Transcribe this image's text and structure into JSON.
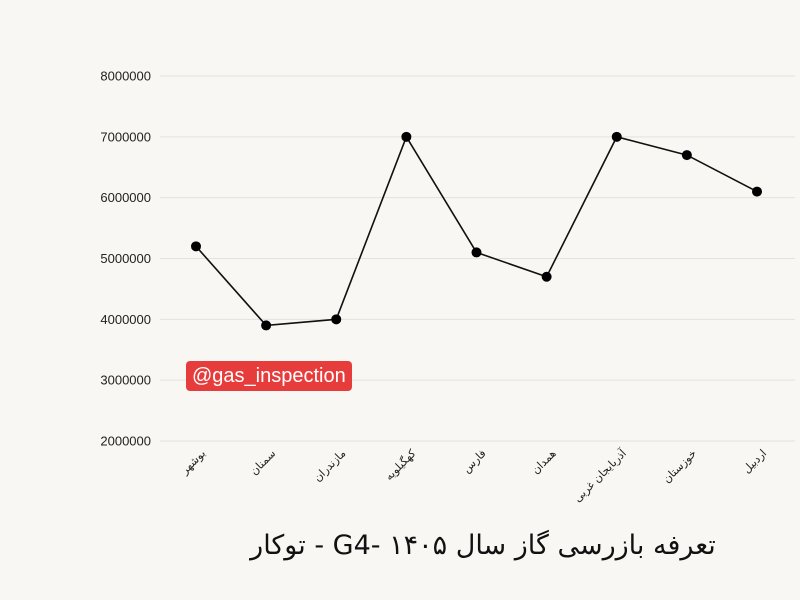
{
  "chart_data": {
    "type": "line",
    "title": "تعرفه بازرسی گاز سال ۱۴۰۵ -G4 - توکار",
    "categories": [
      "بوشهر",
      "سمنان",
      "مازندران",
      "کهگیلویه",
      "فارس",
      "همدان",
      "آذربایجان غربی",
      "خوزستان",
      "اردبیل"
    ],
    "values": [
      5200000,
      3900000,
      4000000,
      7000000,
      5100000,
      4700000,
      7000000,
      6700000,
      6100000
    ],
    "ylim": [
      2000000,
      8000000
    ],
    "yticks": [
      "2000000",
      "3000000",
      "4000000",
      "5000000",
      "6000000",
      "7000000",
      "8000000"
    ],
    "xlabel": "",
    "ylabel": "",
    "grid": true,
    "line_color": "#111111",
    "marker_color": "#000000"
  },
  "watermark": {
    "text": "@gas_inspection",
    "bg_color": "#e63c3c"
  },
  "title_display": "تعرفه بازرسی گاز سال ۱۴۰۵ -G4 - توکار"
}
